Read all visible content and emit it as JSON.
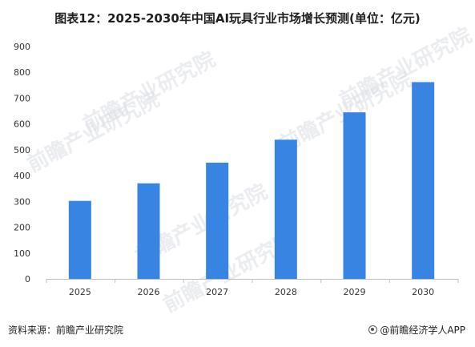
{
  "title": "图表12：2025-2030年中国AI玩具行业市场增长预测(单位：亿元)",
  "source": "资料来源：前瞻产业研究院",
  "brand": "@前瞻经济学人APP",
  "watermark": "前瞻产业研究院",
  "chart_data": {
    "type": "bar",
    "categories": [
      "2025",
      "2026",
      "2027",
      "2028",
      "2029",
      "2030"
    ],
    "values": [
      302,
      370,
      450,
      539,
      645,
      762
    ],
    "ylim": [
      0,
      900
    ],
    "yticks": [
      0,
      100,
      200,
      300,
      400,
      500,
      600,
      700,
      800,
      900
    ],
    "bar_color": "#3884e3",
    "grid": false,
    "legend": "none"
  }
}
